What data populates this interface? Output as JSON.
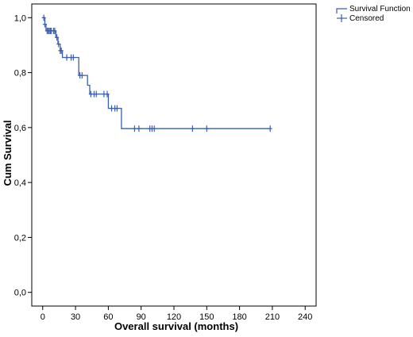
{
  "chart_data": {
    "type": "line",
    "subtype": "kaplan-meier step",
    "xlabel": "Overall survival (months)",
    "ylabel": "Cum Survival",
    "xlim": [
      -10,
      250
    ],
    "ylim": [
      -0.05,
      1.05
    ],
    "x_ticks": [
      0,
      30,
      60,
      90,
      120,
      150,
      180,
      210,
      240
    ],
    "y_ticks": [
      0.0,
      0.2,
      0.4,
      0.6,
      0.8,
      1.0
    ],
    "x_tick_labels": [
      "0",
      "30",
      "60",
      "90",
      "120",
      "150",
      "180",
      "210",
      "240"
    ],
    "y_tick_labels": [
      "0,0",
      "0,2",
      "0,4",
      "0,6",
      "0,8",
      "1,0"
    ],
    "grid": false,
    "legend_position": "top-right",
    "line_color": "#3a5fb0",
    "series": [
      {
        "name": "Survival Function",
        "steps": [
          [
            0,
            1.0
          ],
          [
            2,
            0.976
          ],
          [
            3,
            0.952
          ],
          [
            12,
            0.928
          ],
          [
            14,
            0.904
          ],
          [
            16,
            0.88
          ],
          [
            18,
            0.855
          ],
          [
            33,
            0.79
          ],
          [
            41,
            0.754
          ],
          [
            43,
            0.722
          ],
          [
            60,
            0.67
          ],
          [
            72,
            0.596
          ],
          [
            208,
            0.596
          ]
        ]
      },
      {
        "name": "Censored",
        "points": [
          [
            1,
            1.0
          ],
          [
            2,
            0.976
          ],
          [
            4,
            0.952
          ],
          [
            5,
            0.952
          ],
          [
            6,
            0.952
          ],
          [
            7,
            0.952
          ],
          [
            8,
            0.952
          ],
          [
            10,
            0.952
          ],
          [
            11,
            0.952
          ],
          [
            13,
            0.928
          ],
          [
            14.5,
            0.904
          ],
          [
            16,
            0.88
          ],
          [
            17,
            0.88
          ],
          [
            22,
            0.855
          ],
          [
            26,
            0.855
          ],
          [
            28,
            0.855
          ],
          [
            34,
            0.79
          ],
          [
            36,
            0.79
          ],
          [
            44,
            0.722
          ],
          [
            47,
            0.722
          ],
          [
            49,
            0.722
          ],
          [
            56,
            0.722
          ],
          [
            59,
            0.722
          ],
          [
            63,
            0.67
          ],
          [
            66,
            0.67
          ],
          [
            68,
            0.67
          ],
          [
            84,
            0.596
          ],
          [
            88,
            0.596
          ],
          [
            98,
            0.596
          ],
          [
            100,
            0.596
          ],
          [
            102,
            0.596
          ],
          [
            137,
            0.596
          ],
          [
            150,
            0.596
          ],
          [
            208,
            0.596
          ]
        ]
      }
    ]
  }
}
